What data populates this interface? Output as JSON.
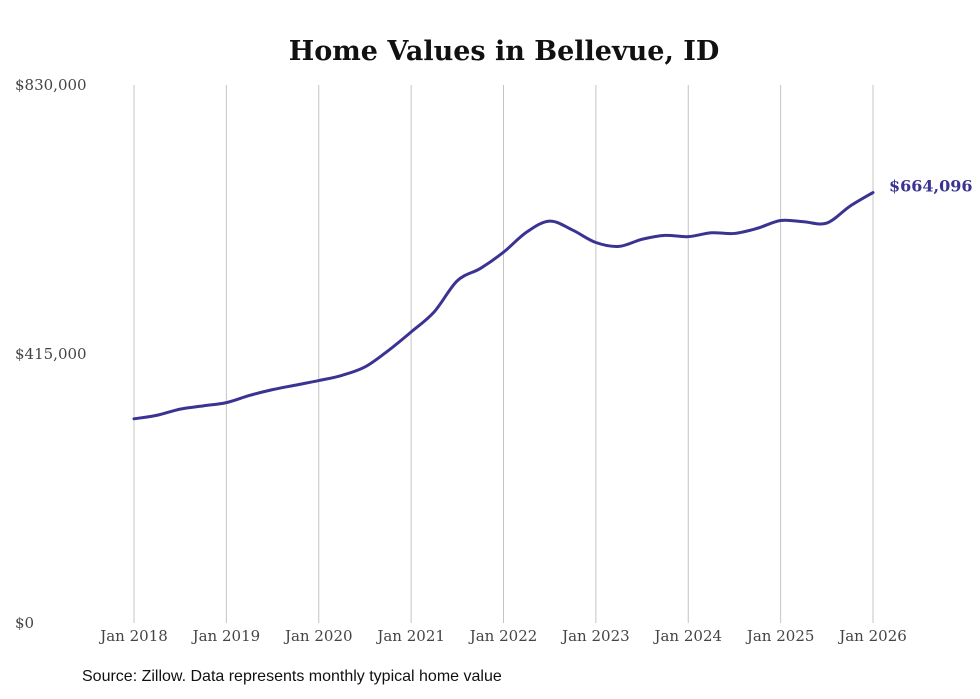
{
  "chart_data": {
    "type": "line",
    "title": "Home Values in Bellevue, ID",
    "xlabel": "",
    "ylabel": "",
    "ylim": [
      0,
      830000
    ],
    "y_ticks": [
      0,
      415000,
      830000
    ],
    "y_tick_labels": [
      "$0",
      "$415,000",
      "$830,000"
    ],
    "x_ticks": [
      2018,
      2019,
      2020,
      2021,
      2022,
      2023,
      2024,
      2025,
      2026
    ],
    "x_tick_labels": [
      "Jan 2018",
      "Jan 2019",
      "Jan 2020",
      "Jan 2021",
      "Jan 2022",
      "Jan 2023",
      "Jan 2024",
      "Jan 2025",
      "Jan 2026"
    ],
    "grid": "vertical",
    "color": "#3b3392",
    "series": [
      {
        "name": "Typical home value",
        "x": [
          2018.0,
          2018.25,
          2018.5,
          2018.75,
          2019.0,
          2019.25,
          2019.5,
          2019.75,
          2020.0,
          2020.25,
          2020.5,
          2020.75,
          2021.0,
          2021.25,
          2021.5,
          2021.75,
          2022.0,
          2022.25,
          2022.5,
          2022.75,
          2023.0,
          2023.25,
          2023.5,
          2023.75,
          2024.0,
          2024.25,
          2024.5,
          2024.75,
          2025.0,
          2025.25,
          2025.5,
          2025.75,
          2026.0
        ],
        "values": [
          315000,
          320500,
          330000,
          335000,
          340000,
          351000,
          360000,
          367000,
          374000,
          382000,
          395000,
          420000,
          449000,
          480000,
          528000,
          547000,
          572000,
          603000,
          620000,
          606000,
          587000,
          581000,
          592000,
          598000,
          596000,
          602000,
          601000,
          609000,
          621000,
          619000,
          617000,
          643000,
          664096
        ]
      }
    ],
    "end_label": "$664,096"
  },
  "footer": {
    "source": "Source: Zillow. Data represents monthly typical home value"
  }
}
